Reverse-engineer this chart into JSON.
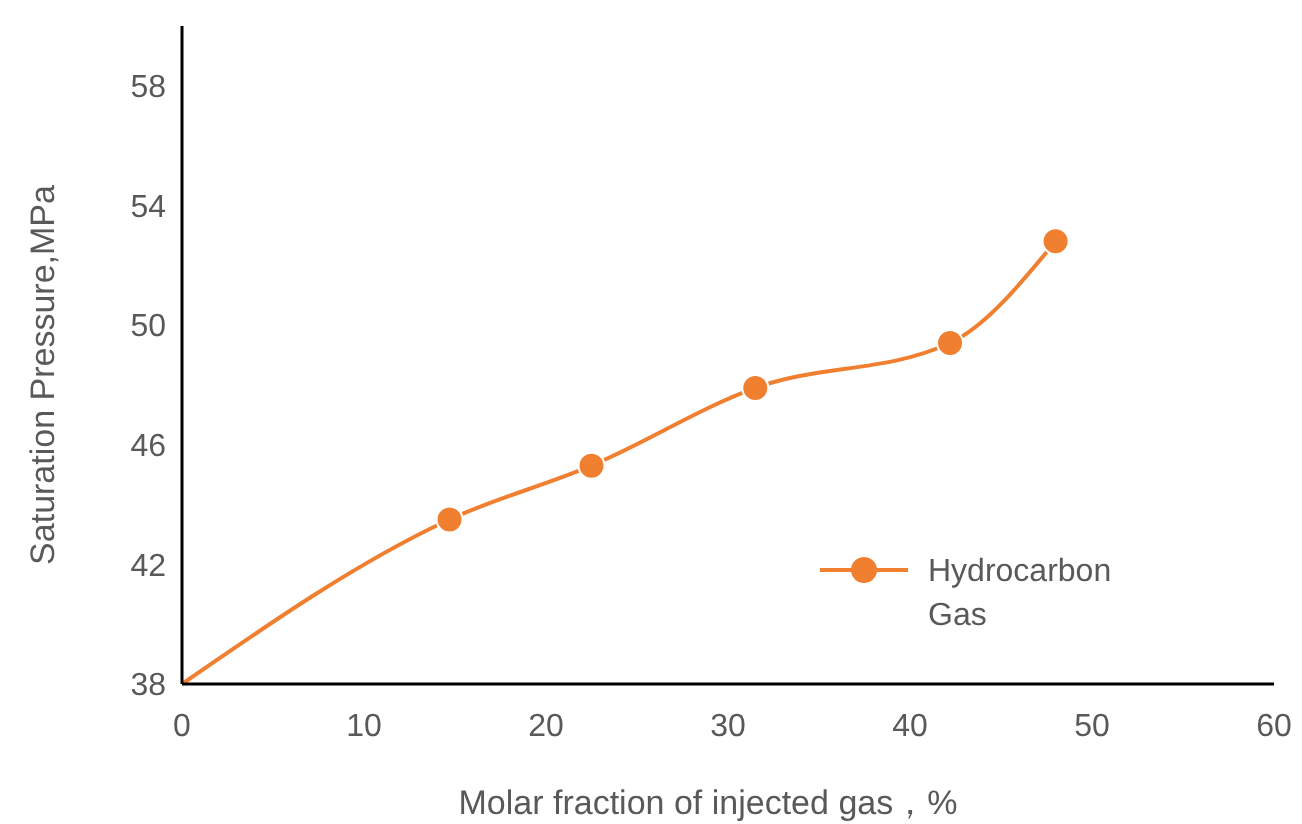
{
  "chart_data": {
    "type": "line",
    "xlabel": "Molar fraction of injected gas，%",
    "ylabel": "Saturation Pressure,MPa",
    "xlim": [
      0,
      60
    ],
    "xticks": [
      0,
      10,
      20,
      30,
      40,
      50,
      60
    ],
    "ylim": [
      38,
      60
    ],
    "yticks": [
      38,
      42,
      46,
      50,
      54,
      58
    ],
    "grid": false,
    "legend": "bottom right",
    "series": [
      {
        "type": "line",
        "color": "#f07f30",
        "x": [
          0,
          14.7,
          22.5,
          31.5,
          42.2,
          48.0
        ],
        "values": [
          38,
          43.5,
          45.3,
          47.9,
          49.4,
          52.8
        ],
        "marker": "none"
      },
      {
        "type": "scatter",
        "name": "Hydrocarbon Gas",
        "color": "#f07f30",
        "x": [
          14.7,
          22.5,
          31.5,
          42.2,
          48.0
        ],
        "values": [
          43.5,
          45.3,
          47.9,
          49.4,
          52.8
        ],
        "marker": "circle"
      }
    ]
  }
}
